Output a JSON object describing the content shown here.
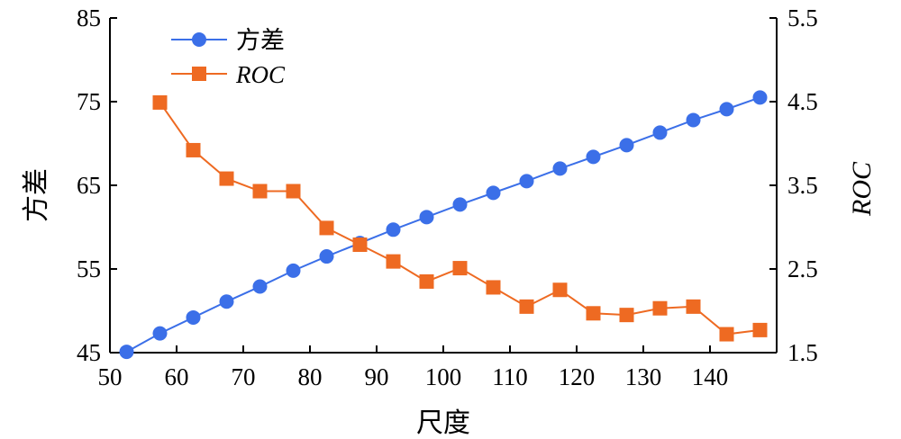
{
  "chart_data": {
    "type": "line",
    "xlabel": "尺度",
    "ylabel_left": "方差",
    "ylabel_right": "ROC",
    "xlim": [
      50,
      150
    ],
    "ylim_left": [
      45,
      85
    ],
    "ylim_right": [
      1.5,
      5.5
    ],
    "x_ticks": [
      50,
      60,
      70,
      80,
      90,
      100,
      110,
      120,
      130,
      140
    ],
    "y_left_ticks": [
      45,
      55,
      65,
      75,
      85
    ],
    "y_right_ticks": [
      1.5,
      2.5,
      3.5,
      4.5,
      5.5
    ],
    "legend_position": "top-left",
    "grid": false,
    "series": [
      {
        "name": "方差",
        "axis": "left",
        "color": "#3b6fe8",
        "marker": "circle",
        "x": [
          52.5,
          57.5,
          62.5,
          67.5,
          72.5,
          77.5,
          82.5,
          87.5,
          92.5,
          97.5,
          102.5,
          107.5,
          112.5,
          117.5,
          122.5,
          127.5,
          132.5,
          137.5,
          142.5,
          147.5
        ],
        "values": [
          45.1,
          47.3,
          49.2,
          51.1,
          52.9,
          54.8,
          56.5,
          58.1,
          59.7,
          61.2,
          62.7,
          64.1,
          65.5,
          67.0,
          68.4,
          69.8,
          71.3,
          72.8,
          74.1,
          75.5
        ]
      },
      {
        "name": "ROC",
        "axis": "right",
        "color": "#ee6a22",
        "marker": "square",
        "x": [
          57.5,
          62.5,
          67.5,
          72.5,
          77.5,
          82.5,
          87.5,
          92.5,
          97.5,
          102.5,
          107.5,
          112.5,
          117.5,
          122.5,
          127.5,
          132.5,
          137.5,
          142.5,
          147.5
        ],
        "values": [
          4.49,
          3.92,
          3.58,
          3.43,
          3.43,
          2.99,
          2.79,
          2.59,
          2.35,
          2.51,
          2.28,
          2.05,
          2.25,
          1.97,
          1.95,
          2.03,
          2.05,
          1.72,
          1.77
        ]
      }
    ]
  }
}
